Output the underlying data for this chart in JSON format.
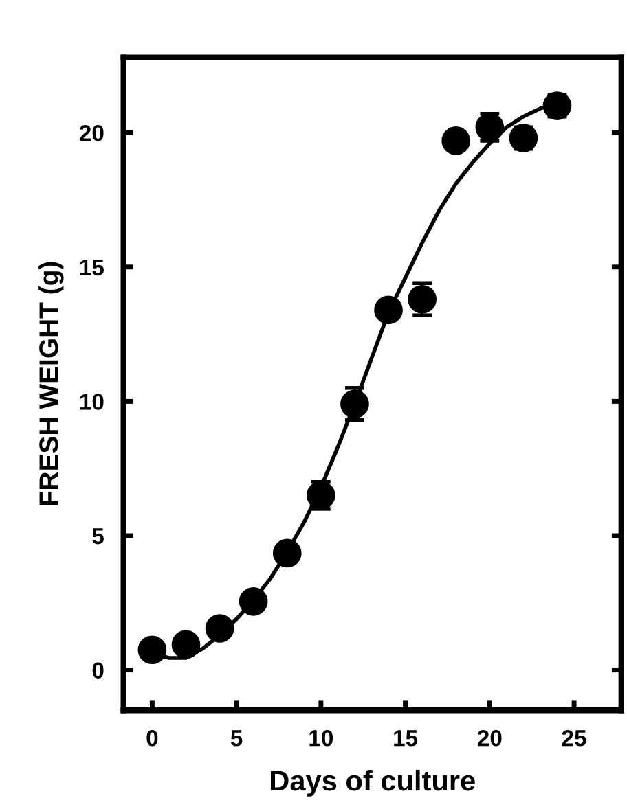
{
  "chart_data": {
    "type": "scatter",
    "xlabel": "Days of culture",
    "ylabel": "FRESH WEIGHT (g)",
    "xlim": [
      -1.7,
      27.8
    ],
    "ylim": [
      -1.5,
      22.8
    ],
    "xticks": [
      0,
      5,
      10,
      15,
      20,
      25
    ],
    "yticks": [
      0,
      5,
      10,
      15,
      20
    ],
    "grid": false,
    "legend": false,
    "series": [
      {
        "marker": "circle",
        "color": "#000000",
        "x": [
          0,
          2,
          4,
          6,
          8,
          10,
          12,
          14,
          16,
          18,
          20,
          22,
          24
        ],
        "values": [
          0.75,
          0.95,
          1.55,
          2.55,
          4.35,
          6.5,
          9.9,
          13.4,
          13.8,
          19.7,
          20.2,
          19.8,
          21.0
        ],
        "errors": [
          0.2,
          0.2,
          0.2,
          0.2,
          0.3,
          0.5,
          0.6,
          0.3,
          0.6,
          0.3,
          0.5,
          0.4,
          0.4
        ]
      },
      {
        "type": "line",
        "color": "#000000",
        "line_style": "solid",
        "x": [
          0,
          1,
          2,
          3,
          4,
          5,
          6,
          7,
          8,
          9,
          10,
          11,
          12,
          13,
          14,
          15,
          16,
          17,
          18,
          19,
          20,
          21,
          22,
          23,
          24
        ],
        "values": [
          0.6,
          0.45,
          0.45,
          0.8,
          1.3,
          1.9,
          2.6,
          3.4,
          4.4,
          5.5,
          6.8,
          8.3,
          9.9,
          11.6,
          13.3,
          14.6,
          15.9,
          17.1,
          18.1,
          18.9,
          19.6,
          20.2,
          20.6,
          20.9,
          21.1
        ]
      }
    ]
  }
}
